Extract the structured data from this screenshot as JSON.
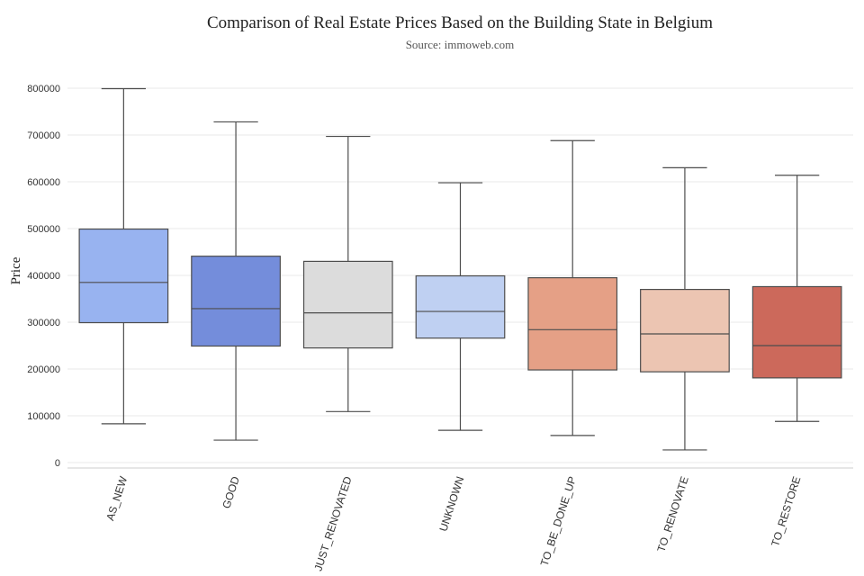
{
  "chart_data": {
    "type": "box",
    "title": "Comparison of Real Estate Prices Based on the Building State in Belgium",
    "subtitle": "Source: immoweb.com",
    "xlabel": "",
    "ylabel": "Price",
    "ylim": [
      0,
      800000
    ],
    "yticks": [
      0,
      100000,
      200000,
      300000,
      400000,
      500000,
      600000,
      700000,
      800000
    ],
    "ytick_labels": [
      "0",
      "100000",
      "200000",
      "300000",
      "400000",
      "500000",
      "600000",
      "700000",
      "800000"
    ],
    "grid": true,
    "categories": [
      "AS_NEW",
      "GOOD",
      "JUST_RENOVATED",
      "UNKNOWN",
      "TO_BE_DONE_UP",
      "TO_RENOVATE",
      "TO_RESTORE"
    ],
    "boxes": [
      {
        "category": "AS_NEW",
        "whisker_low": 83000,
        "q1": 299000,
        "median": 385000,
        "q3": 499000,
        "whisker_high": 799000,
        "color": "#98b3f0"
      },
      {
        "category": "GOOD",
        "whisker_low": 48000,
        "q1": 249000,
        "median": 329000,
        "q3": 441000,
        "whisker_high": 728000,
        "color": "#748ddb"
      },
      {
        "category": "JUST_RENOVATED",
        "whisker_low": 109000,
        "q1": 245000,
        "median": 320000,
        "q3": 430000,
        "whisker_high": 697000,
        "color": "#dcdcdc"
      },
      {
        "category": "UNKNOWN",
        "whisker_low": 69000,
        "q1": 266000,
        "median": 323000,
        "q3": 399000,
        "whisker_high": 598000,
        "color": "#bfd0f2"
      },
      {
        "category": "TO_BE_DONE_UP",
        "whisker_low": 58000,
        "q1": 198000,
        "median": 284000,
        "q3": 395000,
        "whisker_high": 688000,
        "color": "#e5a086"
      },
      {
        "category": "TO_RENOVATE",
        "whisker_low": 27000,
        "q1": 194000,
        "median": 275000,
        "q3": 370000,
        "whisker_high": 630000,
        "color": "#ecc5b2"
      },
      {
        "category": "TO_RESTORE",
        "whisker_low": 88000,
        "q1": 181000,
        "median": 250000,
        "q3": 376000,
        "whisker_high": 614000,
        "color": "#cc695b"
      }
    ]
  }
}
